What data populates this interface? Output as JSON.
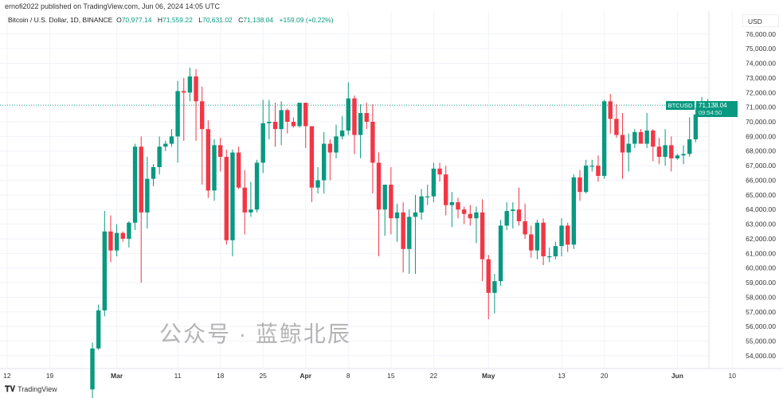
{
  "header": {
    "published": "ernofi2022 published on TradingView.com, Jun 06, 2024 14:05 UTC",
    "symbol": "Bitcoin / U.S. Dollar, 1D, BINANCE",
    "open_label": "O",
    "open": "70,977.14",
    "high_label": "H",
    "high": "71,559.22",
    "low_label": "L",
    "low": "70,631.02",
    "close_label": "C",
    "close": "71,138.04",
    "change": "+159.09 (+0.22%)"
  },
  "axis": {
    "currency": "USD"
  },
  "last_price": {
    "ticker": "BTCUSD",
    "price": "71,138.04",
    "countdown": "09:54:50"
  },
  "footer": {
    "brand": "TradingView"
  },
  "watermark": "公众号 · 蓝鲸北辰",
  "colors": {
    "up": "#089981",
    "down": "#f23645",
    "grid": "#f0f3fa"
  },
  "chart_data": {
    "type": "candlestick",
    "title": "Bitcoin / U.S. Dollar, 1D, BINANCE",
    "ylim": [
      53500,
      76500
    ],
    "yticks": [
      54000,
      55000,
      56000,
      57000,
      58000,
      59000,
      60000,
      61000,
      62000,
      63000,
      64000,
      65000,
      66000,
      67000,
      68000,
      69000,
      70000,
      71000,
      72000,
      73000,
      74000,
      75000,
      76000
    ],
    "ytick_labels": [
      "54,000.00",
      "55,000.00",
      "56,000.00",
      "57,000.00",
      "58,000.00",
      "59,000.00",
      "60,000.00",
      "61,000.00",
      "62,000.00",
      "63,000.00",
      "64,000.00",
      "65,000.00",
      "66,000.00",
      "67,000.00",
      "68,000.00",
      "69,000.00",
      "70,000.00",
      "71,000.00",
      "72,000.00",
      "73,000.00",
      "74,000.00",
      "75,000.00",
      "76,000.00"
    ],
    "xticks": [
      {
        "day": -14,
        "label": "12",
        "bold": false
      },
      {
        "day": -7,
        "label": "19",
        "bold": false
      },
      {
        "day": 4,
        "label": "Mar",
        "bold": true
      },
      {
        "day": 14,
        "label": "11",
        "bold": false
      },
      {
        "day": 21,
        "label": "18",
        "bold": false
      },
      {
        "day": 28,
        "label": "25",
        "bold": false
      },
      {
        "day": 35,
        "label": "Apr",
        "bold": true
      },
      {
        "day": 42,
        "label": "8",
        "bold": false
      },
      {
        "day": 49,
        "label": "15",
        "bold": false
      },
      {
        "day": 56,
        "label": "22",
        "bold": false
      },
      {
        "day": 65,
        "label": "May",
        "bold": true
      },
      {
        "day": 77,
        "label": "13",
        "bold": false
      },
      {
        "day": 84,
        "label": "20",
        "bold": false
      },
      {
        "day": 96,
        "label": "Jun",
        "bold": true
      },
      {
        "day": 105,
        "label": "10",
        "bold": false
      }
    ],
    "first_date": "2024-02-26",
    "ohlc": [
      [
        51700,
        54900,
        50900,
        54500
      ],
      [
        54500,
        57500,
        54400,
        57100
      ],
      [
        57100,
        63900,
        56700,
        62500
      ],
      [
        62500,
        63600,
        60400,
        61200
      ],
      [
        61200,
        63000,
        60800,
        62400
      ],
      [
        62400,
        62500,
        61800,
        62000
      ],
      [
        62000,
        63200,
        61400,
        63100
      ],
      [
        63100,
        68500,
        62600,
        68300
      ],
      [
        68300,
        69000,
        59000,
        63800
      ],
      [
        63800,
        67600,
        62700,
        66100
      ],
      [
        66100,
        67100,
        65600,
        66900
      ],
      [
        66900,
        69000,
        66400,
        68300
      ],
      [
        68300,
        68700,
        68000,
        68500
      ],
      [
        68500,
        69500,
        68300,
        69000
      ],
      [
        69000,
        72800,
        67200,
        72100
      ],
      [
        72100,
        73000,
        68700,
        72000
      ],
      [
        72000,
        73700,
        71400,
        73100
      ],
      [
        73100,
        73600,
        68700,
        71400
      ],
      [
        71400,
        72400,
        65700,
        69500
      ],
      [
        69500,
        70100,
        64800,
        65300
      ],
      [
        65300,
        68800,
        64600,
        68400
      ],
      [
        68400,
        68900,
        66600,
        67600
      ],
      [
        67600,
        68100,
        61600,
        61900
      ],
      [
        61900,
        68100,
        60800,
        67900
      ],
      [
        67900,
        68300,
        65400,
        65500
      ],
      [
        65500,
        66700,
        62300,
        63800
      ],
      [
        63800,
        65900,
        63500,
        64000
      ],
      [
        64000,
        67400,
        63800,
        67200
      ],
      [
        67200,
        71500,
        66500,
        69900
      ],
      [
        69900,
        71500,
        68800,
        70000
      ],
      [
        70000,
        71300,
        68300,
        69500
      ],
      [
        69500,
        71400,
        68400,
        70800
      ],
      [
        70800,
        70900,
        69200,
        70000
      ],
      [
        70000,
        70300,
        69600,
        69700
      ],
      [
        69700,
        71300,
        69600,
        71300
      ],
      [
        71300,
        71300,
        68200,
        69700
      ],
      [
        69700,
        69700,
        64500,
        65500
      ],
      [
        65500,
        66900,
        65100,
        66000
      ],
      [
        66000,
        69300,
        65100,
        68500
      ],
      [
        68500,
        68800,
        66000,
        67900
      ],
      [
        67900,
        69800,
        67500,
        69000
      ],
      [
        69000,
        70400,
        68800,
        69400
      ],
      [
        69400,
        72700,
        69100,
        71600
      ],
      [
        71600,
        71800,
        67800,
        69100
      ],
      [
        69100,
        71200,
        67500,
        70600
      ],
      [
        70600,
        71300,
        69500,
        70000
      ],
      [
        70000,
        71200,
        65100,
        67200
      ],
      [
        67200,
        67900,
        60800,
        64000
      ],
      [
        64000,
        65700,
        62200,
        65700
      ],
      [
        65700,
        66900,
        62300,
        63400
      ],
      [
        63400,
        64400,
        61800,
        63800
      ],
      [
        63800,
        64500,
        59700,
        61300
      ],
      [
        61300,
        64000,
        59600,
        63500
      ],
      [
        63500,
        65000,
        59600,
        63800
      ],
      [
        63800,
        65400,
        63300,
        64900
      ],
      [
        64900,
        65700,
        64300,
        64900
      ],
      [
        64900,
        67200,
        64500,
        66800
      ],
      [
        66800,
        67200,
        65900,
        66400
      ],
      [
        66400,
        67000,
        63600,
        64300
      ],
      [
        64300,
        65200,
        62800,
        64500
      ],
      [
        64500,
        64800,
        63400,
        64000
      ],
      [
        64000,
        64200,
        63000,
        63700
      ],
      [
        63700,
        64300,
        62900,
        63400
      ],
      [
        63400,
        64200,
        61700,
        63800
      ],
      [
        63800,
        64700,
        59100,
        60600
      ],
      [
        60600,
        60900,
        56500,
        58300
      ],
      [
        58300,
        59600,
        56900,
        59100
      ],
      [
        59100,
        63300,
        58800,
        62900
      ],
      [
        62900,
        64500,
        62600,
        63900
      ],
      [
        63900,
        64500,
        62700,
        64000
      ],
      [
        64000,
        65500,
        62900,
        63200
      ],
      [
        63200,
        64400,
        62000,
        62300
      ],
      [
        62300,
        62900,
        60700,
        61200
      ],
      [
        61200,
        63300,
        60600,
        63100
      ],
      [
        63100,
        63400,
        60200,
        60800
      ],
      [
        60800,
        61400,
        60400,
        60800
      ],
      [
        60800,
        61800,
        60600,
        61500
      ],
      [
        61500,
        63400,
        60800,
        62900
      ],
      [
        62900,
        63100,
        61100,
        61600
      ],
      [
        61600,
        66400,
        61300,
        66200
      ],
      [
        66200,
        66700,
        64600,
        65200
      ],
      [
        65200,
        67400,
        65100,
        67000
      ],
      [
        67000,
        67400,
        66600,
        67000
      ],
      [
        67000,
        67700,
        65900,
        66300
      ],
      [
        66300,
        71500,
        66100,
        71400
      ],
      [
        71400,
        71900,
        69200,
        70200
      ],
      [
        70200,
        71200,
        68900,
        69100
      ],
      [
        69100,
        70600,
        66100,
        67900
      ],
      [
        67900,
        69200,
        66600,
        68500
      ],
      [
        68500,
        69500,
        68200,
        69300
      ],
      [
        69300,
        69500,
        68500,
        68500
      ],
      [
        68500,
        70600,
        68200,
        69400
      ],
      [
        69400,
        69500,
        67300,
        68300
      ],
      [
        68300,
        68900,
        67100,
        67600
      ],
      [
        67600,
        69500,
        67000,
        68400
      ],
      [
        68400,
        69000,
        66600,
        67500
      ],
      [
        67500,
        67800,
        67400,
        67700
      ],
      [
        67700,
        68400,
        67100,
        67800
      ],
      [
        67800,
        70300,
        67600,
        68800
      ],
      [
        68800,
        71000,
        68600,
        70500
      ],
      [
        70500,
        71700,
        70400,
        71100
      ],
      [
        70977,
        71559,
        70631,
        71138
      ]
    ]
  }
}
